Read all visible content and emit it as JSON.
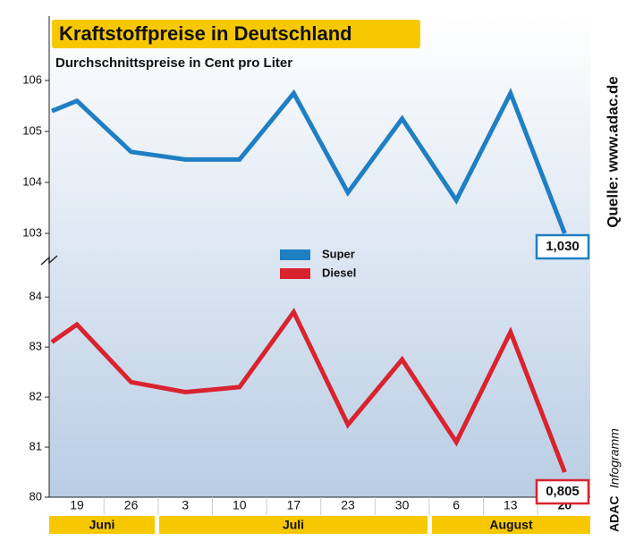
{
  "chart_data": {
    "type": "line",
    "title": "Kraftstoffpreise in Deutschland",
    "subtitle": "Durchschnittspreise in Cent pro Liter",
    "source": "Quelle: www.adac.de",
    "brand": "ADAC",
    "brand_suffix": "Infogramm",
    "categories": [
      null,
      "19",
      "26",
      "3",
      "10",
      "17",
      "23",
      "30",
      "6",
      "13",
      "20"
    ],
    "months": [
      "Juni",
      "Juli",
      "August"
    ],
    "series": [
      {
        "name": "Super",
        "color": "#1f7fc4",
        "values": [
          105.4,
          105.6,
          104.6,
          104.45,
          104.45,
          105.75,
          103.8,
          105.25,
          103.65,
          105.75,
          103.0
        ],
        "value_labels": [
          null,
          null,
          null,
          null,
          null,
          null,
          null,
          null,
          null,
          null,
          "1,030"
        ]
      },
      {
        "name": "Diesel",
        "color": "#d9232e",
        "axis": "y2",
        "values": [
          83.1,
          83.45,
          82.3,
          82.1,
          82.2,
          83.7,
          81.45,
          82.75,
          81.1,
          83.3,
          80.5
        ],
        "value_labels": [
          null,
          null,
          null,
          null,
          null,
          null,
          null,
          null,
          null,
          null,
          "0,805"
        ]
      }
    ],
    "ylim": [
      102.5,
      106.5
    ],
    "yticks": [
      103,
      104,
      105,
      106
    ],
    "y2lim": [
      80,
      84.7
    ],
    "y2ticks": [
      80,
      81,
      82,
      83,
      84
    ]
  }
}
